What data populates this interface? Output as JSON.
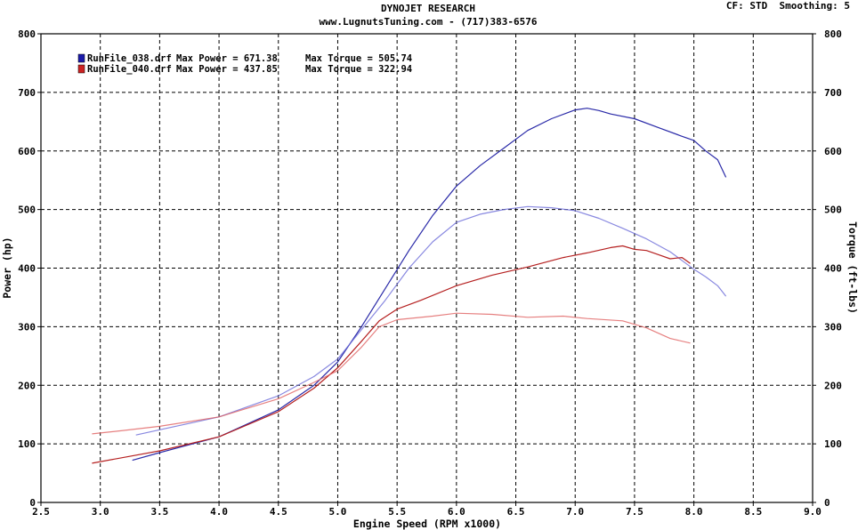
{
  "header": {
    "line1": "DYNOJET RESEARCH",
    "line2": "www.LugnutsTuning.com - (717)383-6576",
    "settings": "CF: STD  Smoothing: 5"
  },
  "chart_data": {
    "type": "line",
    "xlabel": "Engine Speed (RPM x1000)",
    "ylabel_left": "Power (hp)",
    "ylabel_right": "Torque (ft-lbs)",
    "xlim": [
      2.5,
      9.0
    ],
    "ylim": [
      0,
      800
    ],
    "x_ticks": [
      "2.5",
      "3.0",
      "3.5",
      "4.0",
      "4.5",
      "5.0",
      "5.5",
      "6.0",
      "6.5",
      "7.0",
      "7.5",
      "8.0",
      "8.5",
      "9.0"
    ],
    "y_ticks": [
      "0",
      "100",
      "200",
      "300",
      "400",
      "500",
      "600",
      "700",
      "800"
    ],
    "grid": true,
    "legend_position": "top-left",
    "legend": [
      {
        "swatch": "#1a1aaa",
        "file": "RunFile_038.drf",
        "max_power": "Max Power = 671.38",
        "max_torque": "Max Torque = 505.74"
      },
      {
        "swatch": "#cc2222",
        "file": "RunFile_040.drf",
        "max_power": "Max Power = 437.85",
        "max_torque": "Max Torque = 322.94"
      }
    ],
    "series": [
      {
        "run": "RunFile_038.drf",
        "measure": "power",
        "color": "#2a2aa8",
        "opacity": 1,
        "x": [
          3.27,
          3.5,
          4.0,
          4.5,
          4.8,
          5.0,
          5.2,
          5.4,
          5.6,
          5.8,
          6.0,
          6.2,
          6.4,
          6.6,
          6.8,
          7.0,
          7.1,
          7.2,
          7.3,
          7.5,
          7.7,
          7.9,
          8.0,
          8.1,
          8.2,
          8.27
        ],
        "y": [
          72,
          85,
          112,
          158,
          200,
          240,
          300,
          365,
          430,
          490,
          540,
          575,
          605,
          635,
          655,
          670,
          673,
          669,
          663,
          655,
          640,
          625,
          618,
          600,
          585,
          555
        ]
      },
      {
        "run": "RunFile_038.drf",
        "measure": "torque",
        "color": "#6a6ad8",
        "opacity": 0.8,
        "x": [
          3.3,
          3.5,
          4.0,
          4.5,
          4.8,
          5.0,
          5.2,
          5.4,
          5.6,
          5.8,
          6.0,
          6.2,
          6.4,
          6.6,
          6.8,
          7.0,
          7.2,
          7.4,
          7.6,
          7.8,
          8.0,
          8.1,
          8.2,
          8.27
        ],
        "y": [
          115,
          124,
          146,
          182,
          215,
          245,
          295,
          345,
          400,
          445,
          478,
          492,
          500,
          505,
          503,
          498,
          485,
          468,
          450,
          428,
          398,
          385,
          370,
          352
        ]
      },
      {
        "run": "RunFile_040.drf",
        "measure": "power",
        "color": "#b52020",
        "opacity": 1,
        "x": [
          2.93,
          3.2,
          3.5,
          4.0,
          4.5,
          4.8,
          5.0,
          5.2,
          5.35,
          5.5,
          5.7,
          6.0,
          6.3,
          6.6,
          6.9,
          7.1,
          7.3,
          7.4,
          7.5,
          7.6,
          7.7,
          7.8,
          7.9,
          7.97
        ],
        "y": [
          67,
          77,
          88,
          112,
          155,
          195,
          230,
          275,
          310,
          330,
          345,
          370,
          388,
          402,
          418,
          426,
          435,
          438,
          432,
          430,
          423,
          416,
          418,
          408
        ]
      },
      {
        "run": "RunFile_040.drf",
        "measure": "torque",
        "color": "#e06060",
        "opacity": 0.8,
        "x": [
          2.93,
          3.2,
          3.5,
          4.0,
          4.5,
          4.8,
          5.0,
          5.2,
          5.35,
          5.5,
          5.8,
          6.0,
          6.3,
          6.6,
          6.9,
          7.1,
          7.4,
          7.6,
          7.8,
          7.97
        ],
        "y": [
          117,
          123,
          130,
          146,
          177,
          205,
          225,
          265,
          300,
          312,
          318,
          323,
          321,
          316,
          318,
          314,
          310,
          298,
          280,
          272
        ]
      }
    ]
  }
}
